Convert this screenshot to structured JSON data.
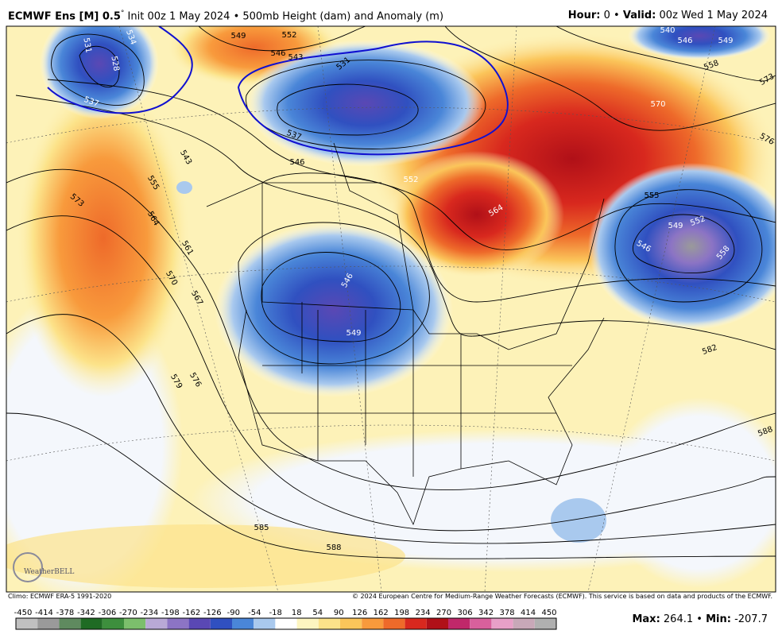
{
  "header": {
    "model": "ECMWF Ens [M] 0.5",
    "degree": "°",
    "description": "Init 00z 1 May 2024 • 500mb Height (dam) and Anomaly (m)",
    "hour_label": "Hour:",
    "hour": 0,
    "separator": "•",
    "valid_label": "Valid:",
    "valid": "00z Wed 1 May 2024"
  },
  "map": {
    "contour_labels": [
      531,
      528,
      534,
      537,
      549,
      552,
      546,
      543,
      531,
      537,
      546,
      543,
      555,
      564,
      561,
      570,
      567,
      573,
      576,
      579,
      552,
      564,
      570,
      573,
      576,
      558,
      549,
      546,
      540,
      555,
      549,
      552,
      546,
      558,
      546,
      549,
      582,
      588,
      585,
      588
    ],
    "logo": "WeatherBELL"
  },
  "footer": {
    "climo": "Climo: ECMWF ERA-5 1991-2020",
    "copyright": "© 2024 European Centre for Medium-Range Weather Forecasts (ECMWF). This service is based on data and products of the ECMWF."
  },
  "colorbar": {
    "labels": [
      -450,
      -414,
      -378,
      -342,
      -306,
      -270,
      -234,
      -198,
      -162,
      -126,
      -90,
      -54,
      -18,
      18,
      54,
      90,
      126,
      162,
      198,
      234,
      270,
      306,
      342,
      378,
      414,
      450
    ],
    "colors": [
      "#c0c0c0",
      "#9a9a9a",
      "#5f8a5f",
      "#1f6b24",
      "#3d8f3d",
      "#7cbf6c",
      "#b9a9d6",
      "#8c74c4",
      "#5a48b4",
      "#3050c0",
      "#4a86d8",
      "#a9c9ee",
      "#ffffff",
      "#fdf5c0",
      "#fce38a",
      "#fbc55a",
      "#f89a3c",
      "#ee6a2a",
      "#d8281e",
      "#b01018",
      "#c0286a",
      "#d8609c",
      "#e8a0c8",
      "#c8a8b8",
      "#b0b0b0"
    ]
  },
  "stats": {
    "max_label": "Max:",
    "max": 264.1,
    "separator": "•",
    "min_label": "Min:",
    "min": -207.7
  }
}
